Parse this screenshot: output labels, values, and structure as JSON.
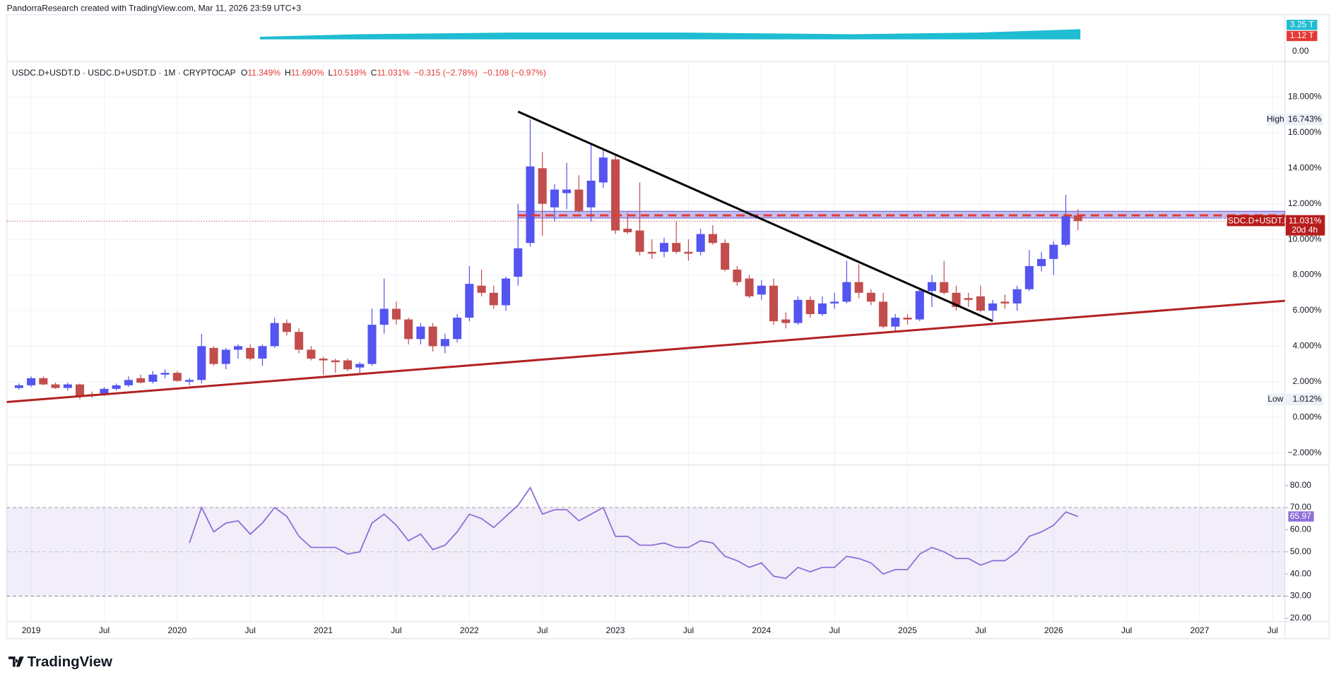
{
  "header": {
    "author": "PandorraResearch created with TradingView.com, Mar 11, 2026 23:59 UTC+3",
    "logo": "TradingView",
    "volume_labels": [
      "3.25 T",
      "1.12 T"
    ],
    "volume_zero": "0.00"
  },
  "chart_data": [
    {
      "type": "candlestick",
      "symbol": "USDC.D+USDT.D · USDC.D+USDT.D · 1M · CRYPTOCAP",
      "ohlc_legend": [
        {
          "key": "O",
          "value": "11.349%"
        },
        {
          "key": "H",
          "value": "11.690%"
        },
        {
          "key": "L",
          "value": "10.518%"
        },
        {
          "key": "C",
          "value": "11.031%"
        }
      ],
      "change": [
        "−0.315 (−2.78%)",
        "−0.108 (−0.97%)"
      ],
      "x": [
        "2018-12",
        "2019-01",
        "2019-02",
        "2019-03",
        "2019-04",
        "2019-05",
        "2019-06",
        "2019-07",
        "2019-08",
        "2019-09",
        "2019-10",
        "2019-11",
        "2019-12",
        "2020-01",
        "2020-02",
        "2020-03",
        "2020-04",
        "2020-05",
        "2020-06",
        "2020-07",
        "2020-08",
        "2020-09",
        "2020-10",
        "2020-11",
        "2020-12",
        "2021-01",
        "2021-02",
        "2021-03",
        "2021-04",
        "2021-05",
        "2021-06",
        "2021-07",
        "2021-08",
        "2021-09",
        "2021-10",
        "2021-11",
        "2021-12",
        "2022-01",
        "2022-02",
        "2022-03",
        "2022-04",
        "2022-05",
        "2022-06",
        "2022-07",
        "2022-08",
        "2022-09",
        "2022-10",
        "2022-11",
        "2022-12",
        "2023-01",
        "2023-02",
        "2023-03",
        "2023-04",
        "2023-05",
        "2023-06",
        "2023-07",
        "2023-08",
        "2023-09",
        "2023-10",
        "2023-11",
        "2023-12",
        "2024-01",
        "2024-02",
        "2024-03",
        "2024-04",
        "2024-05",
        "2024-06",
        "2024-07",
        "2024-08",
        "2024-09",
        "2024-10",
        "2024-11",
        "2024-12",
        "2025-01",
        "2025-02",
        "2025-03",
        "2025-04",
        "2025-05",
        "2025-06",
        "2025-07",
        "2025-08",
        "2025-09",
        "2025-10",
        "2025-11",
        "2025-12",
        "2026-01",
        "2026-02",
        "2026-03"
      ],
      "open": [
        1.65,
        1.8,
        2.2,
        1.85,
        1.65,
        1.85,
        1.3,
        1.3,
        1.6,
        1.8,
        2.2,
        2.0,
        2.4,
        2.5,
        2.0,
        2.1,
        3.9,
        3.0,
        3.8,
        3.9,
        3.3,
        4.0,
        5.3,
        4.8,
        3.8,
        3.3,
        3.2,
        3.2,
        2.8,
        3.0,
        5.2,
        6.1,
        5.5,
        4.4,
        5.1,
        4.0,
        4.4,
        5.6,
        7.4,
        7.0,
        6.3,
        7.9,
        9.8,
        14.0,
        11.8,
        12.6,
        12.8,
        11.8,
        13.2,
        14.5,
        10.6,
        10.5,
        9.3,
        9.3,
        9.8,
        9.3,
        9.3,
        10.3,
        9.8,
        8.3,
        7.8,
        6.9,
        7.4,
        5.5,
        5.3,
        6.6,
        5.8,
        6.4,
        6.5,
        7.6,
        7.0,
        6.5,
        5.1,
        5.6,
        5.5,
        7.1,
        7.6,
        7.0,
        6.7,
        6.8,
        6.0,
        6.5,
        6.4,
        7.2,
        8.5,
        8.9,
        9.7,
        11.349
      ],
      "high": [
        1.9,
        2.3,
        2.3,
        1.95,
        1.95,
        1.9,
        1.45,
        1.7,
        1.9,
        2.3,
        2.4,
        2.6,
        2.7,
        2.6,
        2.2,
        4.7,
        4.0,
        3.9,
        4.1,
        4.1,
        4.1,
        5.6,
        5.5,
        5.0,
        4.0,
        3.4,
        3.3,
        3.3,
        3.1,
        6.1,
        7.8,
        6.5,
        5.6,
        5.3,
        5.3,
        4.7,
        5.8,
        8.5,
        8.3,
        7.4,
        7.9,
        12.0,
        16.743,
        14.9,
        13.1,
        14.3,
        13.6,
        15.3,
        15.0,
        14.8,
        11.5,
        13.2,
        10.0,
        10.1,
        11.0,
        10.0,
        10.6,
        10.8,
        10.0,
        8.5,
        8.0,
        7.7,
        7.8,
        5.9,
        6.8,
        6.8,
        6.8,
        7.0,
        8.8,
        8.6,
        7.2,
        7.0,
        5.8,
        5.8,
        7.2,
        8.0,
        8.8,
        7.4,
        7.0,
        7.4,
        6.6,
        6.9,
        7.4,
        9.4,
        9.3,
        9.9,
        12.5,
        11.69
      ],
      "low": [
        1.55,
        1.7,
        1.8,
        1.6,
        1.5,
        1.012,
        1.1,
        1.2,
        1.5,
        1.7,
        1.9,
        1.9,
        2.2,
        2.0,
        1.8,
        1.9,
        2.9,
        2.7,
        3.3,
        3.2,
        2.9,
        3.9,
        4.6,
        3.6,
        3.2,
        2.4,
        2.5,
        2.6,
        2.5,
        2.9,
        4.7,
        5.2,
        4.1,
        4.1,
        3.7,
        3.6,
        4.2,
        5.4,
        6.8,
        6.1,
        6.0,
        7.4,
        9.6,
        10.2,
        11.0,
        11.7,
        11.5,
        11.0,
        12.9,
        10.3,
        10.3,
        9.1,
        8.9,
        9.0,
        9.2,
        8.8,
        9.1,
        9.7,
        8.2,
        7.4,
        6.7,
        6.6,
        5.2,
        5.0,
        5.2,
        5.6,
        5.7,
        6.1,
        6.4,
        6.7,
        6.3,
        5.0,
        4.8,
        5.2,
        5.4,
        6.2,
        6.9,
        6.0,
        6.2,
        5.9,
        5.5,
        6.1,
        6.0,
        7.1,
        8.2,
        8.0,
        9.6,
        10.518
      ],
      "close": [
        1.8,
        2.2,
        1.85,
        1.65,
        1.85,
        1.2,
        1.2,
        1.6,
        1.8,
        2.1,
        1.95,
        2.4,
        2.5,
        2.05,
        2.1,
        4.0,
        3.0,
        3.8,
        4.0,
        3.3,
        4.0,
        5.3,
        4.8,
        3.8,
        3.3,
        3.2,
        3.1,
        2.7,
        3.0,
        5.2,
        6.1,
        5.5,
        4.4,
        5.1,
        4.0,
        4.4,
        5.6,
        7.5,
        7.0,
        6.3,
        7.8,
        9.5,
        14.1,
        12.0,
        12.8,
        12.8,
        11.6,
        13.3,
        14.6,
        10.5,
        10.4,
        9.3,
        9.2,
        9.8,
        9.3,
        9.2,
        10.3,
        9.8,
        8.3,
        7.6,
        6.8,
        7.4,
        5.4,
        5.3,
        6.6,
        5.8,
        6.4,
        6.5,
        7.6,
        7.0,
        6.5,
        5.1,
        5.6,
        5.5,
        7.1,
        7.6,
        7.0,
        6.2,
        6.6,
        6.0,
        6.4,
        6.4,
        7.2,
        8.5,
        8.9,
        9.7,
        11.3,
        11.031
      ],
      "up_color": "#5454f0",
      "down_color": "#c24d4d",
      "xlim": [
        "2018-11",
        "2027-08"
      ],
      "xticks": [
        {
          "value": "2019-01",
          "label": "2019"
        },
        {
          "value": "2019-07",
          "label": "Jul"
        },
        {
          "value": "2020-01",
          "label": "2020"
        },
        {
          "value": "2020-07",
          "label": "Jul"
        },
        {
          "value": "2021-01",
          "label": "2021"
        },
        {
          "value": "2021-07",
          "label": "Jul"
        },
        {
          "value": "2022-01",
          "label": "2022"
        },
        {
          "value": "2022-07",
          "label": "Jul"
        },
        {
          "value": "2023-01",
          "label": "2023"
        },
        {
          "value": "2023-07",
          "label": "Jul"
        },
        {
          "value": "2024-01",
          "label": "2024"
        },
        {
          "value": "2024-07",
          "label": "Jul"
        },
        {
          "value": "2025-01",
          "label": "2025"
        },
        {
          "value": "2025-07",
          "label": "Jul"
        },
        {
          "value": "2026-01",
          "label": "2026"
        },
        {
          "value": "2026-07",
          "label": "Jul"
        },
        {
          "value": "2027-01",
          "label": "2027"
        },
        {
          "value": "2027-07",
          "label": "Jul"
        }
      ],
      "ylim": [
        -2.68,
        19.95
      ],
      "yticks": [
        {
          "value": 18,
          "label": "18.000%"
        },
        {
          "value": 16,
          "label": "16.000%"
        },
        {
          "value": 14,
          "label": "14.000%"
        },
        {
          "value": 12,
          "label": "12.000%"
        },
        {
          "value": 10,
          "label": "10.000%"
        },
        {
          "value": 8,
          "label": "8.000%"
        },
        {
          "value": 6,
          "label": "6.000%"
        },
        {
          "value": 4,
          "label": "4.000%"
        },
        {
          "value": 2,
          "label": "2.000%"
        },
        {
          "value": 0,
          "label": "0.000%"
        },
        {
          "value": -2,
          "label": "−2.000%"
        }
      ],
      "grid": true,
      "high_marker": {
        "name": "High",
        "label": "16.743%"
      },
      "low_marker": {
        "name": "Low",
        "label": "1.012%"
      },
      "last_price": {
        "name": "USDC.D+USDT.D",
        "label": "11.031%",
        "countdown": "20d 4h"
      },
      "trendlines": [
        {
          "color": "#b22222",
          "x": [
            "2018-11",
            "2027-08"
          ],
          "y": [
            0.86,
            6.55
          ]
        },
        {
          "color": "#000000",
          "x": [
            "2022-05",
            "2025-08"
          ],
          "y": [
            17.18,
            5.41
          ]
        }
      ],
      "zone": {
        "from": "2022-05",
        "to": "2027-08",
        "range": [
          11.2,
          11.58
        ],
        "level": 11.349,
        "color": "#7b6fd8",
        "level_color": "#e53935"
      }
    },
    {
      "type": "line",
      "x": [
        "2020-02",
        "2020-03",
        "2020-04",
        "2020-05",
        "2020-06",
        "2020-07",
        "2020-08",
        "2020-09",
        "2020-10",
        "2020-11",
        "2020-12",
        "2021-01",
        "2021-02",
        "2021-03",
        "2021-04",
        "2021-05",
        "2021-06",
        "2021-07",
        "2021-08",
        "2021-09",
        "2021-10",
        "2021-11",
        "2021-12",
        "2022-01",
        "2022-02",
        "2022-03",
        "2022-04",
        "2022-05",
        "2022-06",
        "2022-07",
        "2022-08",
        "2022-09",
        "2022-10",
        "2022-11",
        "2022-12",
        "2023-01",
        "2023-02",
        "2023-03",
        "2023-04",
        "2023-05",
        "2023-06",
        "2023-07",
        "2023-08",
        "2023-09",
        "2023-10",
        "2023-11",
        "2023-12",
        "2024-01",
        "2024-02",
        "2024-03",
        "2024-04",
        "2024-05",
        "2024-06",
        "2024-07",
        "2024-08",
        "2024-09",
        "2024-10",
        "2024-11",
        "2024-12",
        "2025-01",
        "2025-02",
        "2025-03",
        "2025-04",
        "2025-05",
        "2025-06",
        "2025-07",
        "2025-08",
        "2025-09",
        "2025-10",
        "2025-11",
        "2025-12",
        "2026-01",
        "2026-02",
        "2026-03"
      ],
      "values": [
        54,
        70,
        59,
        63,
        64,
        58,
        63,
        70,
        66,
        57,
        52,
        52,
        52,
        49,
        50,
        63,
        67,
        62,
        55,
        58,
        51,
        53,
        59,
        67,
        65,
        61,
        66,
        71,
        79,
        67,
        69,
        69,
        64,
        67,
        70,
        57,
        57,
        53,
        53,
        54,
        52,
        52,
        55,
        54,
        48,
        46,
        43,
        45,
        39,
        38,
        43,
        41,
        43,
        43,
        48,
        47,
        45,
        40,
        42,
        42,
        49,
        52,
        50,
        47,
        47,
        44,
        46,
        46,
        50,
        57,
        59,
        62,
        68,
        65.97
      ],
      "color": "#8e6fd8",
      "ylim": [
        18.5,
        88.8
      ],
      "yticks": [
        {
          "value": 80,
          "label": "80.00"
        },
        {
          "value": 70,
          "label": "70.00"
        },
        {
          "value": 60,
          "label": "60.00"
        },
        {
          "value": 50,
          "label": "50.00"
        },
        {
          "value": 40,
          "label": "40.00"
        },
        {
          "value": 30,
          "label": "30.00"
        },
        {
          "value": 20,
          "label": "20.00"
        }
      ],
      "bands": [
        30,
        70
      ],
      "mid": 50
    }
  ]
}
